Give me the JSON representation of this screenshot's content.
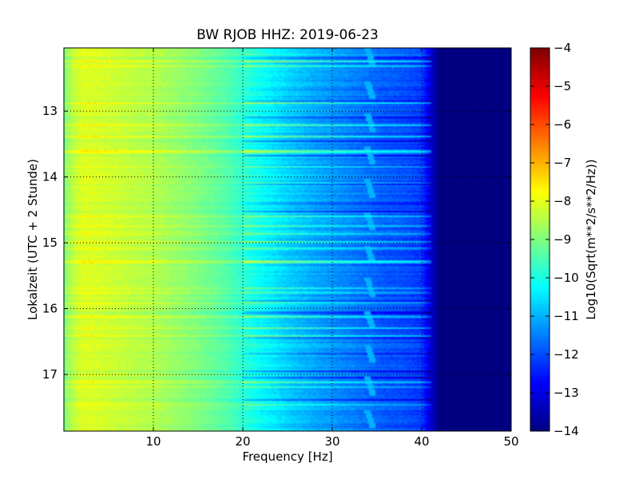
{
  "chart_data": {
    "type": "heatmap",
    "title": "BW RJOB HHZ: 2019-06-23",
    "xlabel": "Frequency [Hz]",
    "ylabel": "Lokalzeit (UTC + 2 Stunde)",
    "xlim": [
      0,
      50
    ],
    "ylim": [
      12.04,
      17.86
    ],
    "y_inverted": true,
    "x_ticks": [
      10,
      20,
      30,
      40,
      50
    ],
    "y_ticks": [
      13,
      14,
      15,
      16,
      17
    ],
    "grid": true,
    "colormap": "jet",
    "colorbar": {
      "label": "Log10(Sqrt(m**2/s**2/Hz))",
      "range": [
        -14,
        -4
      ],
      "ticks": [
        -4,
        -5,
        -6,
        -7,
        -8,
        -9,
        -10,
        -11,
        -12,
        -13,
        -14
      ]
    },
    "z_by_frequency": {
      "frequency_hz": [
        0,
        1,
        2,
        3,
        5,
        8,
        10,
        12,
        15,
        18,
        20,
        22,
        25,
        28,
        30,
        32,
        34,
        36,
        38,
        40,
        41,
        42,
        50
      ],
      "log10_amplitude": [
        -9.0,
        -8.4,
        -8.1,
        -8.1,
        -8.2,
        -8.4,
        -8.5,
        -8.7,
        -9.0,
        -9.4,
        -9.8,
        -10.2,
        -10.7,
        -11.1,
        -11.3,
        -11.5,
        -11.7,
        -11.9,
        -12.0,
        -12.2,
        -13.2,
        -14.0,
        -14.0
      ]
    },
    "spectral_line": {
      "frequency_hz": 34.5,
      "log10_amplitude": -11.0
    },
    "colors": {
      "background": "#ffffff",
      "grid": "#000000",
      "floor": "#00007f"
    }
  }
}
